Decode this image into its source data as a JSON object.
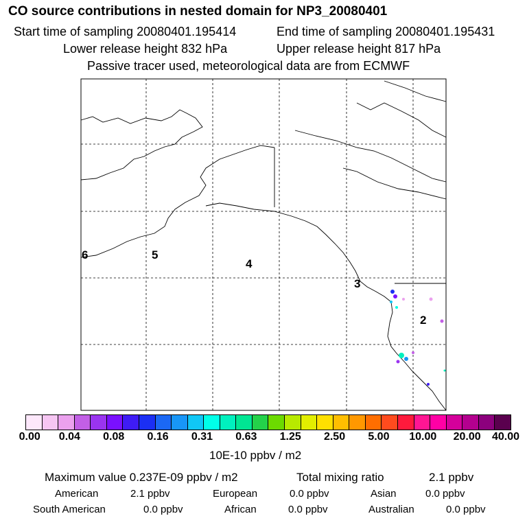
{
  "header": {
    "title": "CO  source contributions in nested domain for NP3_20080401",
    "start_time": "Start time of sampling 20080401.195414",
    "end_time": "End time of sampling 20080401.195431",
    "lower_height": "Lower release height  832 hPa",
    "upper_height": "Upper release height  817 hPa",
    "tracer_note": "Passive tracer used, meteorological data are from ECMWF"
  },
  "map": {
    "regions": [
      "6",
      "5",
      "4",
      "3",
      "2"
    ]
  },
  "colorbar": {
    "colors": [
      "#fde8fb",
      "#f6c6f3",
      "#eba1ee",
      "#c25fe6",
      "#9a34f0",
      "#7a10ff",
      "#3f1cf6",
      "#1b2ff4",
      "#1b68f4",
      "#1896f7",
      "#10c7f6",
      "#00ffe8",
      "#00f0be",
      "#00e693",
      "#24d24a",
      "#6cda00",
      "#b8ea00",
      "#e2ee00",
      "#ffe000",
      "#ffbe00",
      "#ff9800",
      "#ff6e00",
      "#ff4b1e",
      "#ff1a3c",
      "#ff1693",
      "#ff00a5",
      "#d4009b",
      "#b4008f",
      "#8c007d",
      "#5a004e"
    ],
    "ticks": [
      "0.00",
      "0.04",
      "0.08",
      "0.16",
      "0.31",
      "0.63",
      "1.25",
      "2.50",
      "5.00",
      "10.00",
      "20.00",
      "40.00"
    ],
    "units": "10E-10 ppbv / m2"
  },
  "summary": {
    "max_value": "Maximum value  0.237E-09 ppbv / m2",
    "total_mixing": "Total mixing ratio",
    "total_value": "2.1 ppbv",
    "american": {
      "label": "American",
      "value": "2.1 ppbv"
    },
    "european": {
      "label": "European",
      "value": "0.0 ppbv"
    },
    "asian": {
      "label": "Asian",
      "value": "0.0 ppbv"
    },
    "south_american": {
      "label": "South American",
      "value": "0.0 ppbv"
    },
    "african": {
      "label": "African",
      "value": "0.0 ppbv"
    },
    "australian": {
      "label": "Australian",
      "value": "0.0 ppbv"
    }
  }
}
